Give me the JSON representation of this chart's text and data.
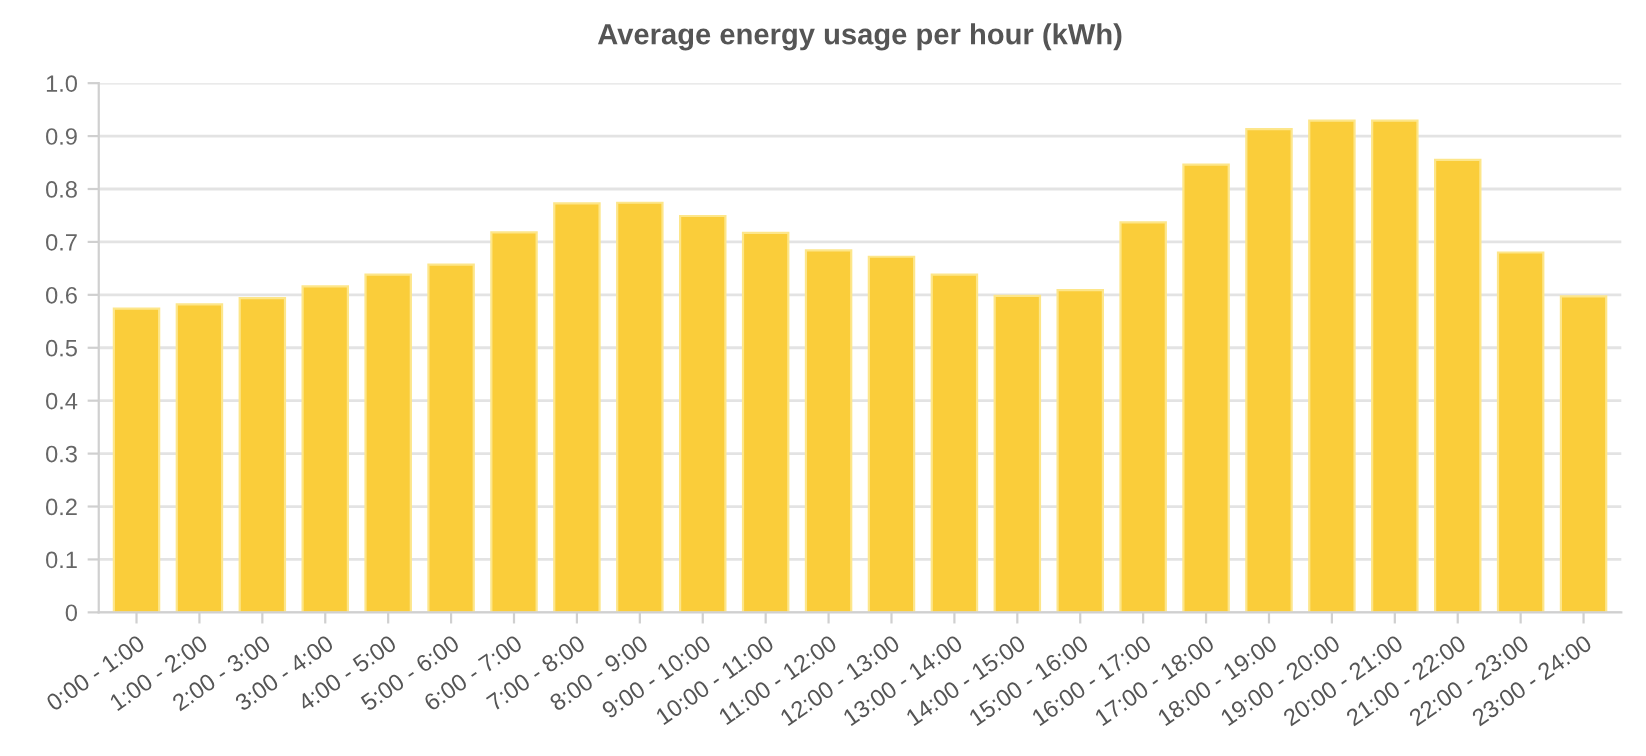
{
  "chart_data": {
    "type": "bar",
    "title": "Average energy usage per hour (kWh)",
    "categories": [
      "0:00 - 1:00",
      "1:00 - 2:00",
      "2:00 - 3:00",
      "3:00 - 4:00",
      "4:00 - 5:00",
      "5:00 - 6:00",
      "6:00 - 7:00",
      "7:00 - 8:00",
      "8:00 - 9:00",
      "9:00 - 10:00",
      "10:00 - 11:00",
      "11:00 - 12:00",
      "12:00 - 13:00",
      "13:00 - 14:00",
      "14:00 - 15:00",
      "15:00 - 16:00",
      "16:00 - 17:00",
      "17:00 - 18:00",
      "18:00 - 19:00",
      "19:00 - 20:00",
      "20:00 - 21:00",
      "21:00 - 22:00",
      "22:00 - 23:00",
      "23:00 - 24:00"
    ],
    "values": [
      0.574,
      0.582,
      0.594,
      0.616,
      0.638,
      0.657,
      0.718,
      0.773,
      0.774,
      0.749,
      0.717,
      0.684,
      0.672,
      0.638,
      0.598,
      0.609,
      0.737,
      0.846,
      0.913,
      0.929,
      0.929,
      0.855,
      0.68,
      0.597
    ],
    "color": "#facd3a",
    "ylim": [
      0,
      1.0
    ],
    "yticks": [
      0,
      0.1,
      0.2,
      0.3,
      0.4,
      0.5,
      0.6,
      0.7,
      0.8,
      0.9,
      {
        "value": 1.0,
        "label": "1.0"
      }
    ],
    "grid": "y"
  }
}
